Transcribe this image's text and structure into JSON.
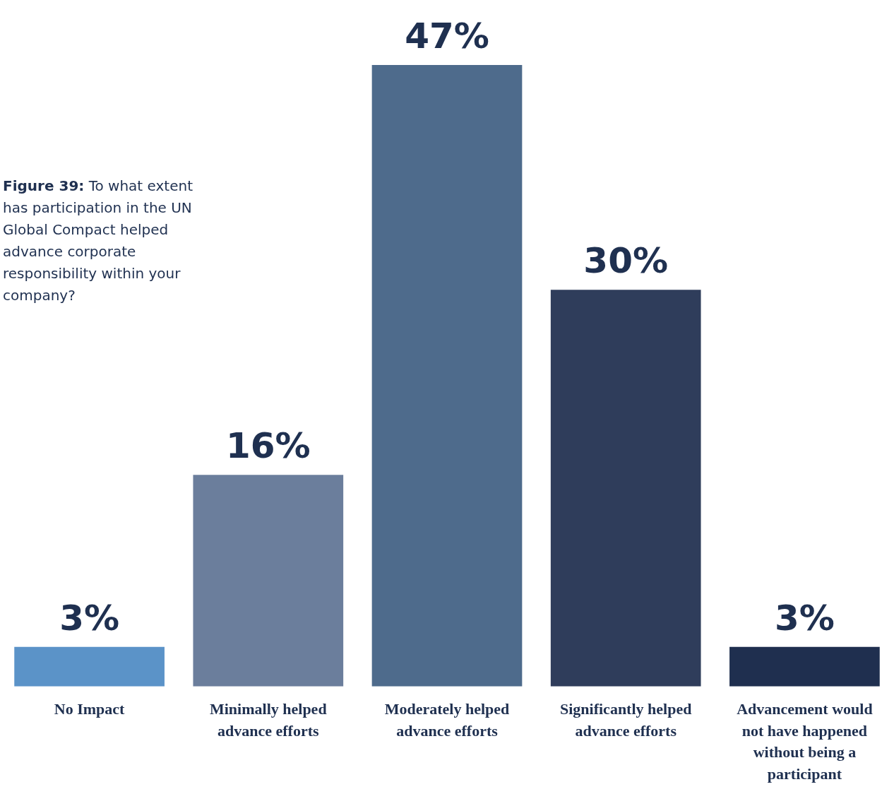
{
  "chart_data": {
    "type": "bar",
    "title": "Figure 39: To what extent has participation in the UN Global Compact helped advance corporate responsibility within your company?",
    "categories": [
      "No Impact",
      "Minimally helped advance efforts",
      "Moderately helped advance efforts",
      "Significantly helped advance efforts",
      "Advancement would not have happened without being a participant"
    ],
    "values": [
      3,
      16,
      47,
      30,
      3
    ],
    "value_labels": [
      "3%",
      "16%",
      "47%",
      "30%",
      "3%"
    ],
    "colors": [
      "#5b93c8",
      "#6b7e9c",
      "#4e6b8c",
      "#2f3d5b",
      "#1f2f4f"
    ],
    "ylim": [
      0,
      47
    ],
    "grid": false,
    "data_labels": true,
    "tick_labels": "x"
  }
}
